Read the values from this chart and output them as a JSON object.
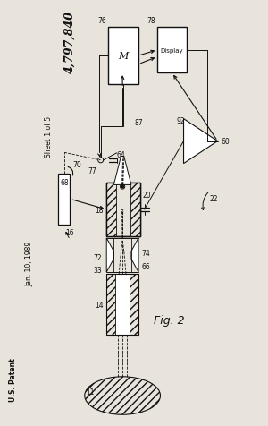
{
  "bg_color": "#e8e4dc",
  "lc": "#111111",
  "patent_num": "4,797,840",
  "sheet": "Sheet 1 of 5",
  "date": "Jan. 10, 1989",
  "patent": "U.S. Patent",
  "fig": "Fig. 2"
}
